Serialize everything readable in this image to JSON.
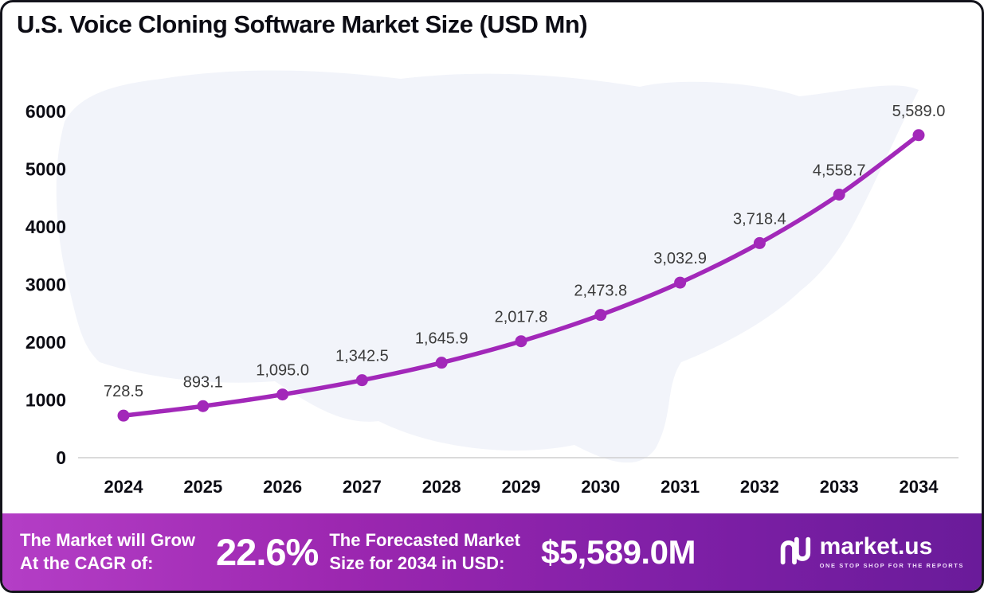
{
  "title": "U.S. Voice Cloning Software Market Size (USD Mn)",
  "chart_data": {
    "type": "line",
    "title": "U.S. Voice Cloning Software Market Size (USD Mn)",
    "x": [
      2024,
      2025,
      2026,
      2027,
      2028,
      2029,
      2030,
      2031,
      2032,
      2033,
      2034
    ],
    "values": [
      728.5,
      893.1,
      1095.0,
      1342.5,
      1645.9,
      2017.8,
      2473.8,
      3032.9,
      3718.4,
      4558.7,
      5589.0
    ],
    "point_labels": [
      "728.5",
      "893.1",
      "1,095.0",
      "1,342.5",
      "1,645.9",
      "2,017.8",
      "2,473.8",
      "3,032.9",
      "3,718.4",
      "4,558.7",
      "5,589.0"
    ],
    "xlabel": "",
    "ylabel": "",
    "ylim": [
      0,
      6000
    ],
    "yticks": [
      0,
      1000,
      2000,
      3000,
      4000,
      5000,
      6000
    ],
    "grid": false,
    "legend": "none",
    "line_color": "#a228b9",
    "marker_color": "#a228b9",
    "label_color": "#3b3b3b",
    "axis_text_color": "#0c0c14",
    "map_fill": "#edf0f8"
  },
  "footer": {
    "cagr_label_line1": "The Market will Grow",
    "cagr_label_line2": "At the CAGR of:",
    "cagr_value": "22.6%",
    "forecast_label_line1": "The Forecasted Market",
    "forecast_label_line2": "Size for 2034 in USD:",
    "forecast_value": "$5,589.0M",
    "brand": "market.us",
    "brand_tagline": "ONE STOP SHOP FOR THE REPORTS"
  }
}
